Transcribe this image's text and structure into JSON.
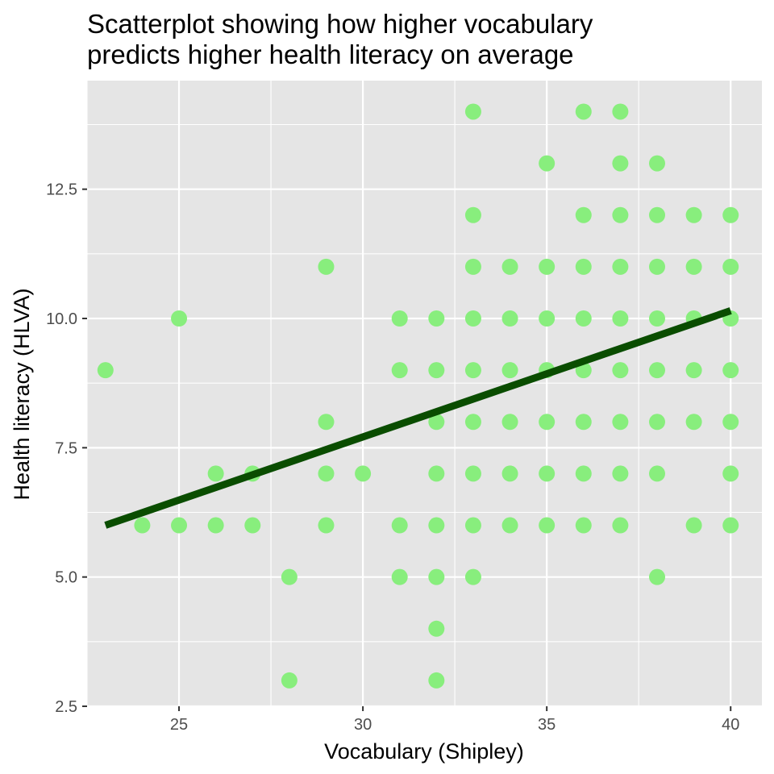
{
  "chart_data": {
    "type": "scatter",
    "title": "Scatterplot showing how higher vocabulary predicts higher health literacy on average",
    "title_lines": [
      "Scatterplot showing how higher vocabulary",
      "predicts higher health literacy on average"
    ],
    "xlabel": "Vocabulary (Shipley)",
    "ylabel": "Health literacy (HLVA)",
    "xlim": [
      22.5,
      40.85
    ],
    "ylim": [
      2.5,
      14.6
    ],
    "x_ticks": [
      25,
      30,
      35,
      40
    ],
    "x_tick_labels": [
      "25",
      "30",
      "35",
      "40"
    ],
    "y_ticks": [
      2.5,
      5,
      7.5,
      10,
      12.5
    ],
    "y_tick_labels": [
      "2.5",
      "5.0",
      "7.5",
      "10.0",
      "12.5"
    ],
    "grid": true,
    "legend": "none",
    "point_color": "#88ee7d",
    "line_color": "#0a4d00",
    "panel_background": "#e5e5e5",
    "grid_color": "#ffffff",
    "points": [
      [
        23,
        9
      ],
      [
        24,
        6
      ],
      [
        25,
        10
      ],
      [
        25,
        6
      ],
      [
        26,
        7
      ],
      [
        26,
        6
      ],
      [
        27,
        7
      ],
      [
        27,
        6
      ],
      [
        28,
        5
      ],
      [
        28,
        3
      ],
      [
        29,
        11
      ],
      [
        29,
        8
      ],
      [
        29,
        7
      ],
      [
        29,
        6
      ],
      [
        30,
        7
      ],
      [
        31,
        10
      ],
      [
        31,
        9
      ],
      [
        31,
        6
      ],
      [
        31,
        5
      ],
      [
        32,
        10
      ],
      [
        32,
        9
      ],
      [
        32,
        8
      ],
      [
        32,
        7
      ],
      [
        32,
        6
      ],
      [
        32,
        5
      ],
      [
        32,
        4
      ],
      [
        32,
        3
      ],
      [
        33,
        14
      ],
      [
        33,
        12
      ],
      [
        33,
        11
      ],
      [
        33,
        10
      ],
      [
        33,
        9
      ],
      [
        33,
        8
      ],
      [
        33,
        7
      ],
      [
        33,
        6
      ],
      [
        33,
        5
      ],
      [
        34,
        11
      ],
      [
        34,
        10
      ],
      [
        34,
        9
      ],
      [
        34,
        8
      ],
      [
        34,
        7
      ],
      [
        34,
        6
      ],
      [
        35,
        13
      ],
      [
        35,
        11
      ],
      [
        35,
        10
      ],
      [
        35,
        9
      ],
      [
        35,
        8
      ],
      [
        35,
        7
      ],
      [
        35,
        6
      ],
      [
        36,
        14
      ],
      [
        36,
        12
      ],
      [
        36,
        11
      ],
      [
        36,
        10
      ],
      [
        36,
        9
      ],
      [
        36,
        8
      ],
      [
        36,
        7
      ],
      [
        36,
        6
      ],
      [
        37,
        14
      ],
      [
        37,
        13
      ],
      [
        37,
        12
      ],
      [
        37,
        11
      ],
      [
        37,
        10
      ],
      [
        37,
        9
      ],
      [
        37,
        8
      ],
      [
        37,
        7
      ],
      [
        37,
        6
      ],
      [
        38,
        13
      ],
      [
        38,
        12
      ],
      [
        38,
        11
      ],
      [
        38,
        10
      ],
      [
        38,
        9
      ],
      [
        38,
        8
      ],
      [
        38,
        7
      ],
      [
        38,
        5
      ],
      [
        39,
        12
      ],
      [
        39,
        11
      ],
      [
        39,
        10
      ],
      [
        39,
        9
      ],
      [
        39,
        8
      ],
      [
        39,
        6
      ],
      [
        40,
        12
      ],
      [
        40,
        11
      ],
      [
        40,
        10
      ],
      [
        40,
        9
      ],
      [
        40,
        8
      ],
      [
        40,
        7
      ],
      [
        40,
        6
      ]
    ],
    "trend_line": {
      "x": [
        23,
        40
      ],
      "y": [
        6.0,
        10.15
      ]
    }
  }
}
